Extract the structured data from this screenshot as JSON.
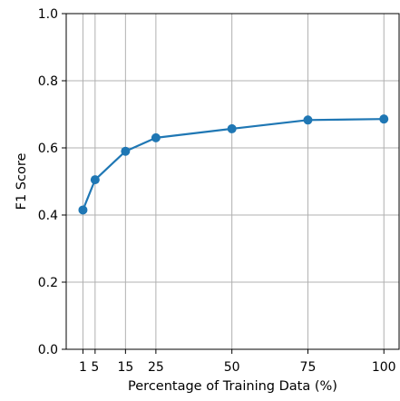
{
  "chart_data": {
    "type": "line",
    "title": "",
    "xlabel": "Percentage of Training Data (%)",
    "ylabel": "F1 Score",
    "x": [
      1,
      5,
      15,
      25,
      50,
      75,
      100
    ],
    "x_tick_labels": [
      "1",
      "5",
      "15",
      "25",
      "50",
      "75",
      "100"
    ],
    "xlim": [
      -4.5,
      105
    ],
    "ylim": [
      0.0,
      1.0
    ],
    "y_ticks": [
      0.0,
      0.2,
      0.4,
      0.6,
      0.8,
      1.0
    ],
    "y_tick_labels": [
      "0.0",
      "0.2",
      "0.4",
      "0.6",
      "0.8",
      "1.0"
    ],
    "grid": true,
    "series": [
      {
        "values": [
          0.415,
          0.505,
          0.59,
          0.63,
          0.657,
          0.683,
          0.686
        ],
        "color": "#1f77b4",
        "marker": "circle"
      }
    ]
  }
}
